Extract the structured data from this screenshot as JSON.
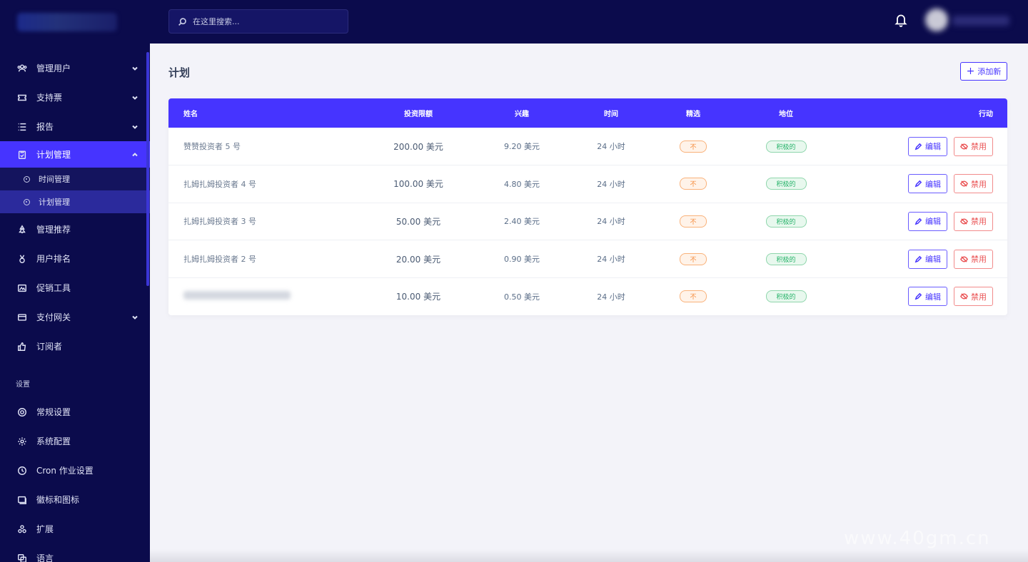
{
  "colors": {
    "sidebar_bg": "#0b0b4c",
    "accent": "#4634ff",
    "danger": "#ea5455",
    "success": "#27b36a",
    "warning": "#f58b3b"
  },
  "topbar": {
    "search_placeholder": "在这里搜索..."
  },
  "sidebar": {
    "items": [
      {
        "label": "管理用户",
        "icon": "users-icon"
      },
      {
        "label": "支持票",
        "icon": "ticket-icon"
      },
      {
        "label": "报告",
        "icon": "list-icon"
      },
      {
        "label": "计划管理",
        "icon": "clipboard-icon"
      },
      {
        "label": "管理推荐",
        "icon": "tree-icon"
      },
      {
        "label": "用户排名",
        "icon": "medal-icon"
      },
      {
        "label": "促销工具",
        "icon": "image-icon"
      },
      {
        "label": "支付网关",
        "icon": "credit-card-icon"
      },
      {
        "label": "订阅者",
        "icon": "thumbs-up-icon"
      }
    ],
    "sub_items": [
      {
        "label": "时间管理"
      },
      {
        "label": "计划管理"
      }
    ],
    "settings_title": "设置",
    "settings_items": [
      {
        "label": "常规设置",
        "icon": "lifebuoy-icon"
      },
      {
        "label": "系统配置",
        "icon": "gear-icon"
      },
      {
        "label": "Cron 作业设置",
        "icon": "clock-icon"
      },
      {
        "label": "徽标和图标",
        "icon": "images-icon"
      },
      {
        "label": "扩展",
        "icon": "cubes-icon"
      },
      {
        "label": "语言",
        "icon": "language-icon"
      }
    ]
  },
  "main": {
    "title": "计划",
    "add_button": "添加新",
    "add_icon": "+",
    "table": {
      "headers": {
        "name": "姓名",
        "limit": "投资限额",
        "interest": "兴趣",
        "time": "时间",
        "featured": "精选",
        "status": "地位",
        "action": "行动"
      },
      "rows": [
        {
          "name": "赞赞投资者 5 号",
          "limit": "200.00 美元",
          "interest": "9.20 美元",
          "time": "24 小时",
          "featured": "不",
          "status": "积极的"
        },
        {
          "name": "扎姆扎姆投资者 4 号",
          "limit": "100.00 美元",
          "interest": "4.80 美元",
          "time": "24 小时",
          "featured": "不",
          "status": "积极的"
        },
        {
          "name": "扎姆扎姆投资者 3 号",
          "limit": "50.00 美元",
          "interest": "2.40 美元",
          "time": "24 小时",
          "featured": "不",
          "status": "积极的"
        },
        {
          "name": "扎姆扎姆投资者 2 号",
          "limit": "20.00 美元",
          "interest": "0.90 美元",
          "time": "24 小时",
          "featured": "不",
          "status": "积极的"
        },
        {
          "name": "",
          "limit": "10.00 美元",
          "interest": "0.50 美元",
          "time": "24 小时",
          "featured": "不",
          "status": "积极的"
        }
      ],
      "edit_label": "编辑",
      "ban_label": "禁用"
    }
  },
  "watermark": "www.40gm.cn"
}
